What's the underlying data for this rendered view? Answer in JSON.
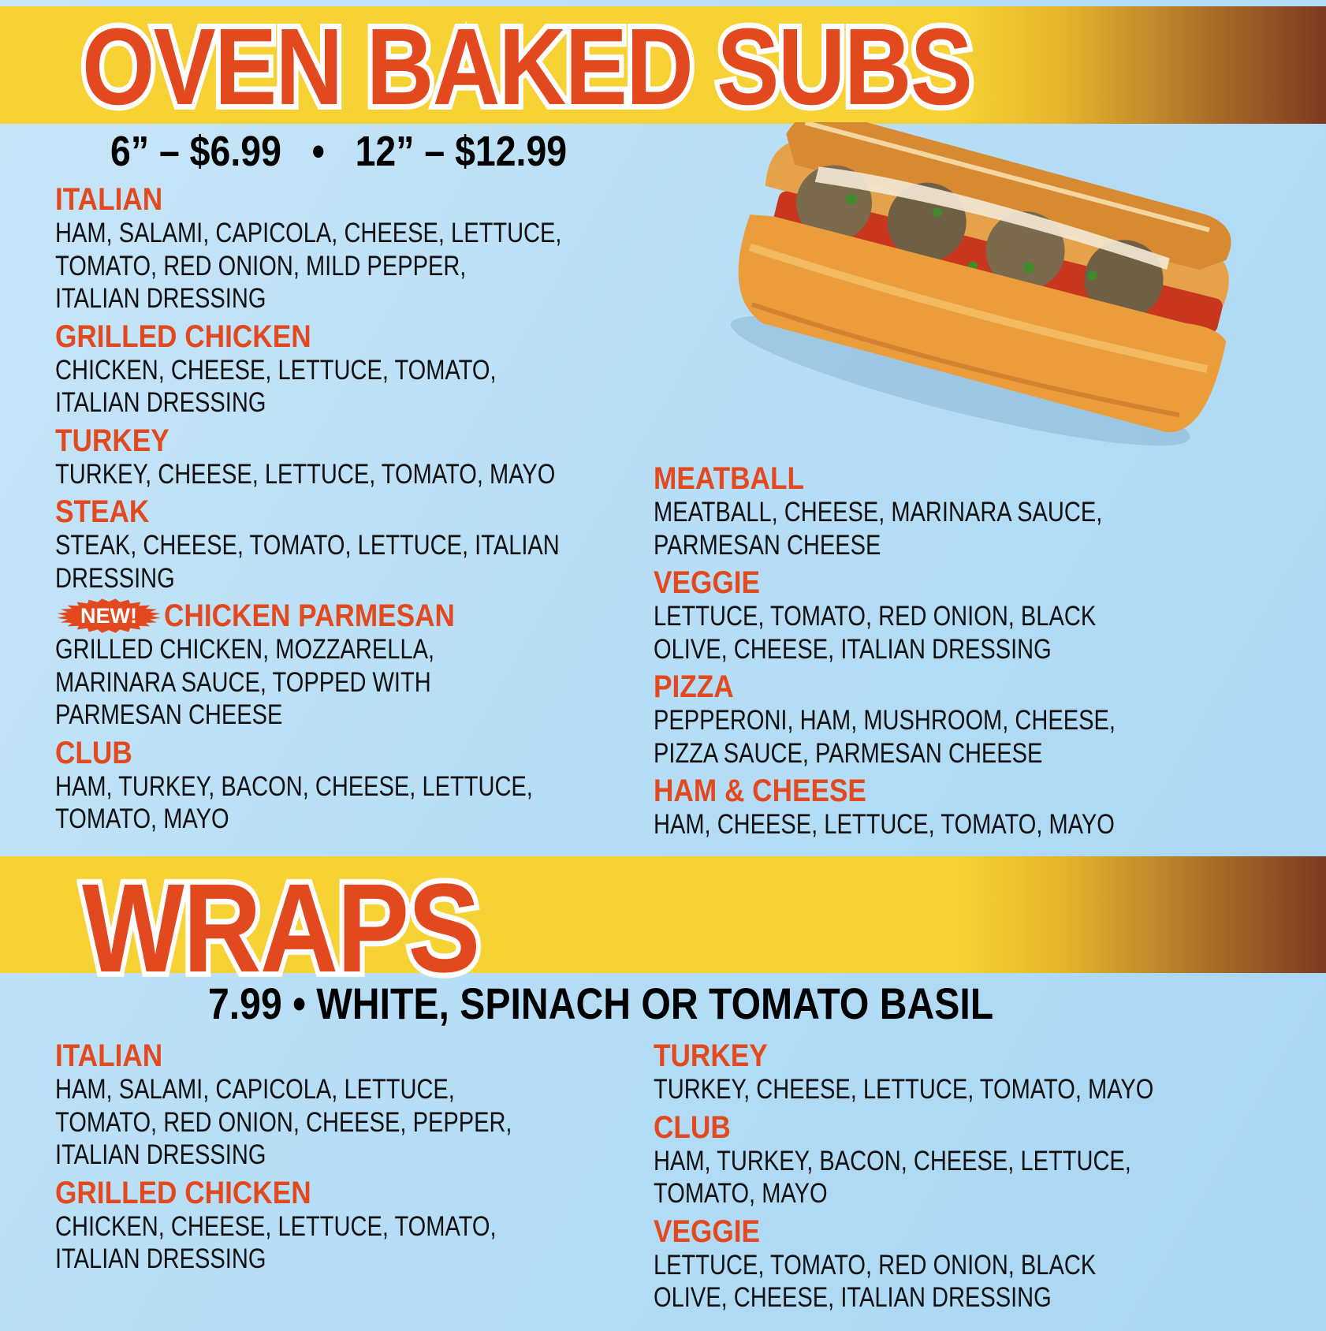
{
  "subs": {
    "title": "OVEN BAKED SUBS",
    "pricing": "6” – $6.99   •   12” – $12.99",
    "left": [
      {
        "name": "ITALIAN",
        "lines": [
          "HAM, SALAMI, CAPICOLA, CHEESE, LETTUCE,",
          "TOMATO, RED ONION, MILD PEPPER,",
          "ITALIAN DRESSING"
        ]
      },
      {
        "name": "GRILLED CHICKEN",
        "lines": [
          "CHICKEN, CHEESE, LETTUCE, TOMATO,",
          "ITALIAN DRESSING"
        ]
      },
      {
        "name": "TURKEY",
        "lines": [
          "TURKEY, CHEESE, LETTUCE, TOMATO, MAYO"
        ]
      },
      {
        "name": "STEAK",
        "lines": [
          "STEAK, CHEESE, TOMATO, LETTUCE, ITALIAN",
          "DRESSING"
        ]
      },
      {
        "name": "CHICKEN PARMESAN",
        "badge": "NEW!",
        "lines": [
          "GRILLED CHICKEN, MOZZARELLA,",
          "MARINARA SAUCE, TOPPED WITH",
          "PARMESAN CHEESE"
        ]
      },
      {
        "name": "CLUB",
        "lines": [
          "HAM, TURKEY, BACON, CHEESE, LETTUCE,",
          "TOMATO, MAYO"
        ]
      }
    ],
    "right": [
      {
        "name": "MEATBALL",
        "lines": [
          "MEATBALL, CHEESE, MARINARA SAUCE,",
          "PARMESAN CHEESE"
        ]
      },
      {
        "name": "VEGGIE",
        "lines": [
          "LETTUCE, TOMATO, RED ONION, BLACK",
          "OLIVE, CHEESE, ITALIAN DRESSING"
        ]
      },
      {
        "name": "PIZZA",
        "lines": [
          "PEPPERONI, HAM, MUSHROOM, CHEESE,",
          "PIZZA SAUCE, PARMESAN CHEESE"
        ]
      },
      {
        "name": "HAM & CHEESE",
        "lines": [
          "HAM, CHEESE, LETTUCE, TOMATO, MAYO"
        ]
      }
    ]
  },
  "wraps": {
    "title": "WRAPS",
    "pricing": "7.99 • WHITE, SPINACH OR TOMATO BASIL",
    "left": [
      {
        "name": "ITALIAN",
        "lines": [
          "HAM, SALAMI, CAPICOLA, LETTUCE,",
          "TOMATO, RED ONION, CHEESE, PEPPER,",
          "ITALIAN DRESSING"
        ]
      },
      {
        "name": "GRILLED CHICKEN",
        "lines": [
          "CHICKEN, CHEESE, LETTUCE, TOMATO,",
          "ITALIAN DRESSING"
        ]
      }
    ],
    "right": [
      {
        "name": "TURKEY",
        "lines": [
          "TURKEY, CHEESE, LETTUCE, TOMATO, MAYO"
        ]
      },
      {
        "name": "CLUB",
        "lines": [
          "HAM, TURKEY, BACON, CHEESE, LETTUCE,",
          "TOMATO, MAYO"
        ]
      },
      {
        "name": "VEGGIE",
        "lines": [
          "LETTUCE, TOMATO, RED ONION, BLACK",
          "OLIVE, CHEESE, ITALIAN DRESSING"
        ]
      }
    ]
  },
  "colors": {
    "accent": "#e3491f",
    "band": "#f7d234",
    "band_end": "#7c3a1f",
    "background": "#b9dff6"
  },
  "image": {
    "subject": "meatball-sub-photo"
  }
}
